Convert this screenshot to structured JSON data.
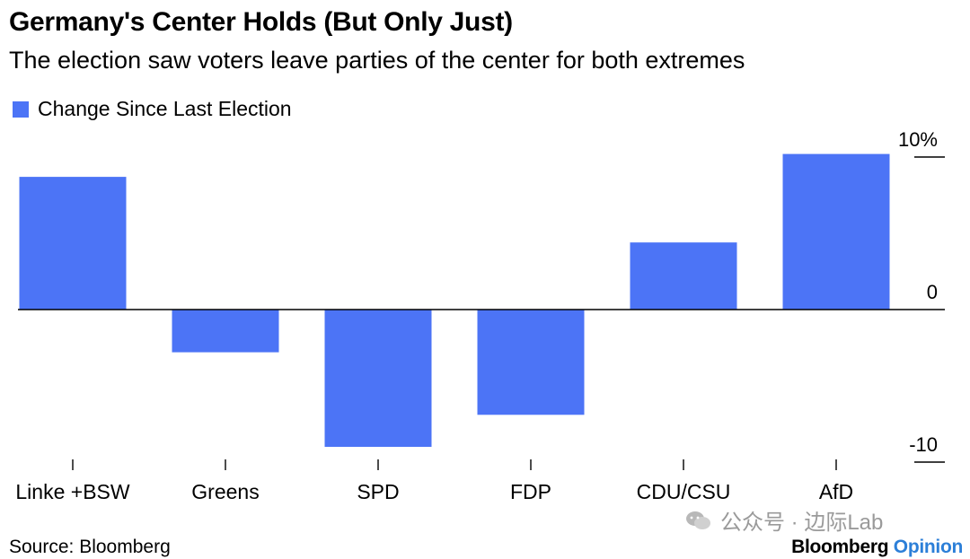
{
  "header": {
    "title": "Germany's Center Holds (But Only Just)",
    "subtitle": "The election saw voters leave parties of the center for both extremes"
  },
  "legend": {
    "label": "Change Since Last Election",
    "color": "#4c74f6"
  },
  "chart_data": {
    "type": "bar",
    "title": "Germany's Center Holds (But Only Just)",
    "subtitle": "The election saw voters leave parties of the center for both extremes",
    "categories": [
      "Linke +BSW",
      "Greens",
      "SPD",
      "FDP",
      "CDU/CSU",
      "AfD"
    ],
    "series": [
      {
        "name": "Change Since Last Election",
        "values": [
          8.7,
          -2.8,
          -9.0,
          -6.9,
          4.4,
          10.2
        ],
        "color": "#4c74f6"
      }
    ],
    "ylim": [
      -10,
      10
    ],
    "yticks": [
      10,
      0,
      -10
    ],
    "ytick_labels": [
      "10%",
      "0",
      "-10"
    ],
    "y_axis_position": "right",
    "grid": false,
    "legend_position": "top-left"
  },
  "footer": {
    "source": "Source: Bloomberg",
    "brand_part1": "Bloomberg",
    "brand_part2": "Opinion",
    "watermark": "公众号 · 边际Lab"
  }
}
